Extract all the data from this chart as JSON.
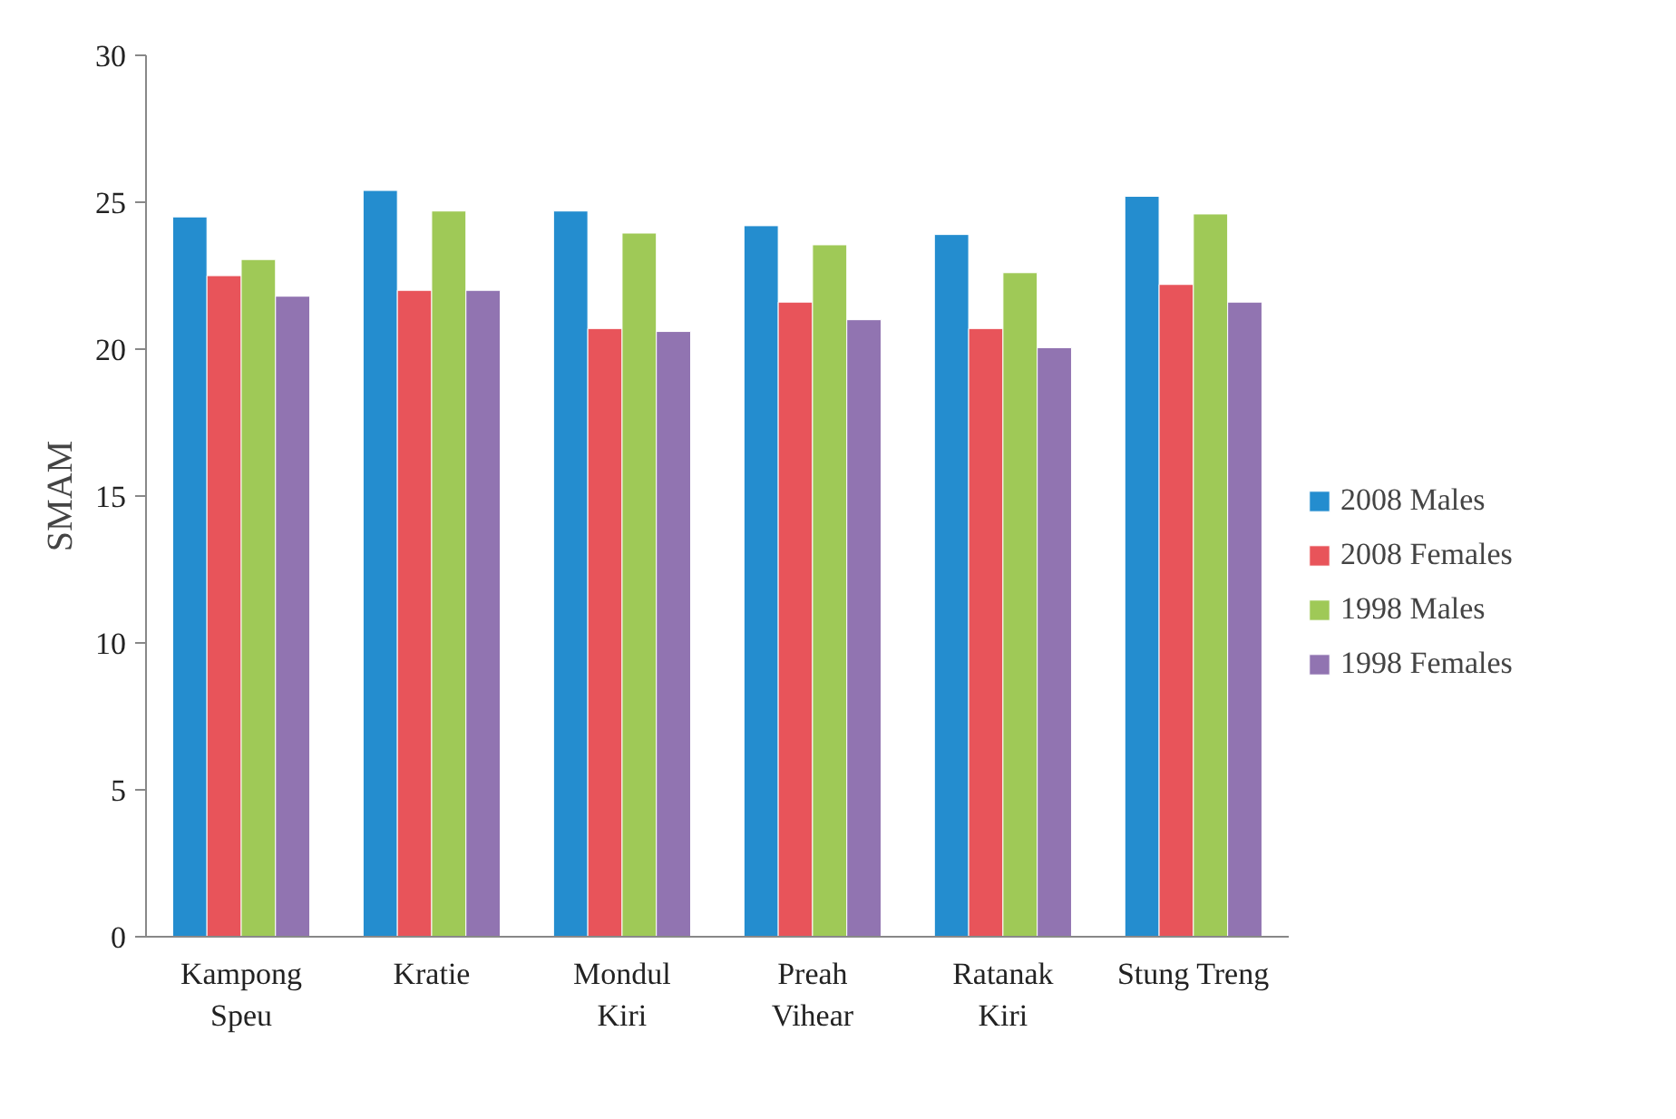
{
  "chart_data": {
    "type": "bar",
    "ylabel": "SMAM",
    "categories": [
      "Kampong\nSpeu",
      "Kratie",
      "Mondul\nKiri",
      "Preah\nVihear",
      "Ratanak\nKiri",
      "Stung Treng"
    ],
    "series": [
      {
        "name": "2008 Males",
        "color": "#248dcf",
        "values": [
          24.5,
          25.4,
          24.7,
          24.2,
          23.9,
          25.2
        ]
      },
      {
        "name": "2008 Females",
        "color": "#e8545a",
        "values": [
          22.5,
          22.0,
          20.7,
          21.6,
          20.7,
          22.2
        ]
      },
      {
        "name": "1998 Males",
        "color": "#9fc957",
        "values": [
          23.05,
          24.7,
          23.95,
          23.55,
          22.6,
          24.6
        ]
      },
      {
        "name": "1998 Females",
        "color": "#9174b1",
        "values": [
          21.8,
          22.0,
          20.6,
          21.0,
          20.05,
          21.6
        ]
      }
    ],
    "ylim": [
      0,
      30
    ],
    "yticks": [
      0,
      5,
      10,
      15,
      20,
      25,
      30
    ],
    "grid": false,
    "legend": "right"
  }
}
